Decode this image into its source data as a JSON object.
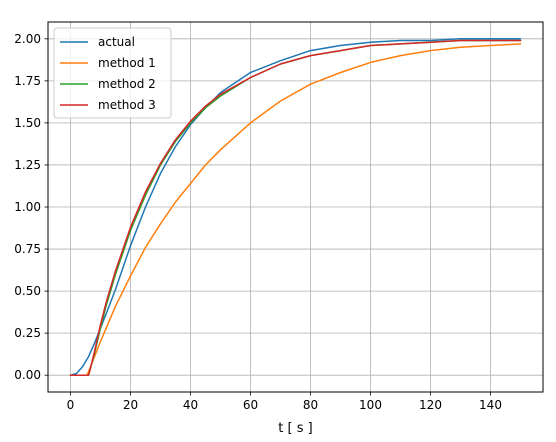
{
  "chart_data": {
    "type": "line",
    "title": "",
    "xlabel": "t [ s ]",
    "ylabel": "",
    "xlim": [
      -7.5,
      157.5
    ],
    "ylim": [
      -0.1,
      2.1
    ],
    "x_ticks": [
      0,
      20,
      40,
      60,
      80,
      100,
      120,
      140
    ],
    "x_tick_labels": [
      "0",
      "20",
      "40",
      "60",
      "80",
      "100",
      "120",
      "140"
    ],
    "y_ticks": [
      0.0,
      0.25,
      0.5,
      0.75,
      1.0,
      1.25,
      1.5,
      1.75,
      2.0
    ],
    "y_tick_labels": [
      "0.00",
      "0.25",
      "0.50",
      "0.75",
      "1.00",
      "1.25",
      "1.50",
      "1.75",
      "2.00"
    ],
    "grid": true,
    "legend_position": "top-left",
    "series": [
      {
        "name": "actual",
        "color": "#1f77b4",
        "x": [
          0,
          2,
          4,
          6,
          8,
          10,
          12,
          15,
          20,
          25,
          30,
          35,
          40,
          45,
          50,
          55,
          60,
          70,
          80,
          90,
          100,
          110,
          120,
          130,
          140,
          150
        ],
        "y": [
          0.0,
          0.01,
          0.05,
          0.11,
          0.19,
          0.28,
          0.37,
          0.51,
          0.77,
          1.0,
          1.2,
          1.36,
          1.49,
          1.59,
          1.68,
          1.74,
          1.8,
          1.87,
          1.93,
          1.96,
          1.98,
          1.99,
          1.99,
          2.0,
          2.0,
          2.0
        ]
      },
      {
        "name": "method 1",
        "color": "#ff7f0e",
        "x": [
          0,
          3,
          5.5,
          6,
          8,
          10,
          15,
          20,
          25,
          30,
          35,
          40,
          45,
          50,
          60,
          70,
          80,
          90,
          100,
          110,
          120,
          130,
          140,
          150
        ],
        "y": [
          0.0,
          0.0,
          0.0,
          0.02,
          0.11,
          0.2,
          0.41,
          0.59,
          0.76,
          0.9,
          1.03,
          1.14,
          1.25,
          1.34,
          1.5,
          1.63,
          1.73,
          1.8,
          1.86,
          1.9,
          1.93,
          1.95,
          1.96,
          1.97
        ]
      },
      {
        "name": "method 2",
        "color": "#2ca02c",
        "x": [
          0,
          3,
          6,
          6.5,
          8,
          10,
          12,
          15,
          20,
          25,
          30,
          35,
          40,
          45,
          50,
          60,
          70,
          80,
          90,
          100,
          110,
          120,
          130,
          140,
          150
        ],
        "y": [
          0.0,
          0.0,
          0.0,
          0.03,
          0.13,
          0.28,
          0.42,
          0.6,
          0.86,
          1.07,
          1.25,
          1.39,
          1.5,
          1.59,
          1.66,
          1.77,
          1.85,
          1.9,
          1.93,
          1.96,
          1.97,
          1.98,
          1.99,
          1.99,
          1.99
        ]
      },
      {
        "name": "method 3",
        "color": "#d62728",
        "x": [
          0,
          3,
          6,
          6.5,
          8,
          10,
          12,
          15,
          20,
          25,
          30,
          35,
          40,
          45,
          50,
          60,
          70,
          80,
          90,
          100,
          110,
          120,
          130,
          140,
          150
        ],
        "y": [
          0.0,
          0.0,
          0.0,
          0.03,
          0.14,
          0.3,
          0.44,
          0.62,
          0.88,
          1.09,
          1.26,
          1.4,
          1.51,
          1.6,
          1.67,
          1.77,
          1.85,
          1.9,
          1.93,
          1.96,
          1.97,
          1.98,
          1.99,
          1.99,
          1.99
        ]
      }
    ]
  }
}
